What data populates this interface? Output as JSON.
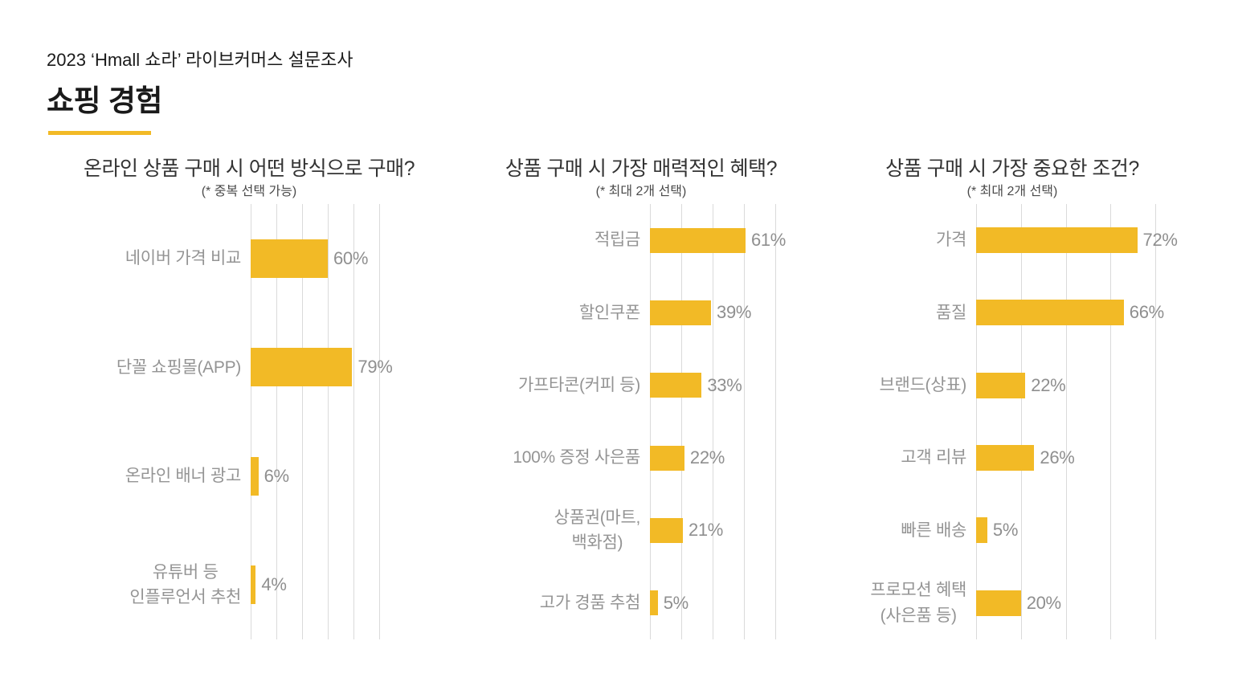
{
  "theme": {
    "accent": "#F2BA26",
    "background": "#FFFFFF",
    "gridline": "#DADADA",
    "label_color": "#949494",
    "value_color": "#8F8F8F",
    "title_color": "#333333",
    "subtitle_color": "#4A4A4A",
    "header_text": "#1A1A1A"
  },
  "header": {
    "subtitle": "2023 ‘Hmall 쇼라’ 라이브커머스 설문조사",
    "title": "쇼핑 경험"
  },
  "chart_data": [
    {
      "type": "bar",
      "orientation": "horizontal",
      "title": "온라인 상품 구매 시 어떤 방식으로 구매?",
      "subtitle": "(* 중복 선택 가능)",
      "categories": [
        "네이버 가격 비교",
        "단꼴 쇼핑몰(APP)",
        "온라인 배너 광고",
        "유튜버 등\n인플루언서 추천"
      ],
      "values": [
        60,
        79,
        6,
        4
      ],
      "unit": "%",
      "xlim": [
        0,
        100
      ],
      "gridline_step_pct": 20,
      "grid": true,
      "legend": false,
      "value_labels": "end-of-bar"
    },
    {
      "type": "bar",
      "orientation": "horizontal",
      "title": "상품 구매 시 가장 매력적인 혜택?",
      "subtitle": "(* 최대 2개 선택)",
      "categories": [
        "적립금",
        "할인쿠폰",
        "가프타콘(커피 등)",
        "100% 증정 사은품",
        "상품권(마트,\n백화점)",
        "고가 경품 추첨"
      ],
      "values": [
        61,
        39,
        33,
        22,
        21,
        5
      ],
      "unit": "%",
      "xlim": [
        0,
        80
      ],
      "gridline_step_pct": 20,
      "grid": true,
      "legend": false,
      "value_labels": "end-of-bar"
    },
    {
      "type": "bar",
      "orientation": "horizontal",
      "title": "상품 구매 시 가장 중요한 조건?",
      "subtitle": "(* 최대 2개 선택)",
      "categories": [
        "가격",
        "품질",
        "브랜드(상표)",
        "고객 리뷰",
        "빠른 배송",
        "프로모션 혜택\n(사은품 등)"
      ],
      "values": [
        72,
        66,
        22,
        26,
        5,
        20
      ],
      "unit": "%",
      "xlim": [
        0,
        80
      ],
      "gridline_step_pct": 20,
      "grid": true,
      "legend": false,
      "value_labels": "end-of-bar"
    }
  ]
}
